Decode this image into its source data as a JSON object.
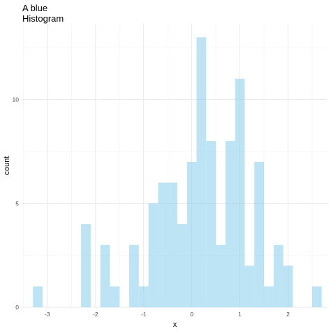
{
  "chart_data": {
    "type": "histogram",
    "title": "A blue\nHistogram",
    "xlabel": "x",
    "ylabel": "count",
    "xlim": [
      -3.52,
      2.82
    ],
    "ylim": [
      0,
      13.65
    ],
    "x_ticks": [
      {
        "value": -3,
        "label": "-3"
      },
      {
        "value": -2,
        "label": "-2"
      },
      {
        "value": -1,
        "label": "-1"
      },
      {
        "value": 0,
        "label": "0"
      },
      {
        "value": 1,
        "label": "1"
      },
      {
        "value": 2,
        "label": "2"
      }
    ],
    "y_ticks": [
      {
        "value": 0,
        "label": "0"
      },
      {
        "value": 5,
        "label": "5"
      },
      {
        "value": 10,
        "label": "10"
      }
    ],
    "grid": true,
    "bar_color": "#87CEEB",
    "bar_opacity": 0.55,
    "bins": [
      {
        "x0": -3.3,
        "x1": -3.1,
        "count": 1
      },
      {
        "x0": -3.1,
        "x1": -2.9,
        "count": 0
      },
      {
        "x0": -2.9,
        "x1": -2.7,
        "count": 0
      },
      {
        "x0": -2.7,
        "x1": -2.5,
        "count": 0
      },
      {
        "x0": -2.5,
        "x1": -2.3,
        "count": 0
      },
      {
        "x0": -2.3,
        "x1": -2.1,
        "count": 4
      },
      {
        "x0": -2.1,
        "x1": -1.9,
        "count": 0
      },
      {
        "x0": -1.9,
        "x1": -1.7,
        "count": 3
      },
      {
        "x0": -1.7,
        "x1": -1.5,
        "count": 1
      },
      {
        "x0": -1.5,
        "x1": -1.3,
        "count": 0
      },
      {
        "x0": -1.3,
        "x1": -1.1,
        "count": 3
      },
      {
        "x0": -1.1,
        "x1": -0.9,
        "count": 1
      },
      {
        "x0": -0.9,
        "x1": -0.7,
        "count": 5
      },
      {
        "x0": -0.7,
        "x1": -0.5,
        "count": 6
      },
      {
        "x0": -0.5,
        "x1": -0.3,
        "count": 6
      },
      {
        "x0": -0.3,
        "x1": -0.1,
        "count": 4
      },
      {
        "x0": -0.1,
        "x1": 0.1,
        "count": 7
      },
      {
        "x0": 0.1,
        "x1": 0.3,
        "count": 13
      },
      {
        "x0": 0.3,
        "x1": 0.5,
        "count": 8
      },
      {
        "x0": 0.5,
        "x1": 0.7,
        "count": 3
      },
      {
        "x0": 0.7,
        "x1": 0.9,
        "count": 8
      },
      {
        "x0": 0.9,
        "x1": 1.1,
        "count": 11
      },
      {
        "x0": 1.1,
        "x1": 1.3,
        "count": 2
      },
      {
        "x0": 1.3,
        "x1": 1.5,
        "count": 7
      },
      {
        "x0": 1.5,
        "x1": 1.7,
        "count": 1
      },
      {
        "x0": 1.7,
        "x1": 1.9,
        "count": 3
      },
      {
        "x0": 1.9,
        "x1": 2.1,
        "count": 2
      },
      {
        "x0": 2.1,
        "x1": 2.3,
        "count": 0
      },
      {
        "x0": 2.3,
        "x1": 2.5,
        "count": 0
      },
      {
        "x0": 2.5,
        "x1": 2.7,
        "count": 1
      }
    ]
  }
}
